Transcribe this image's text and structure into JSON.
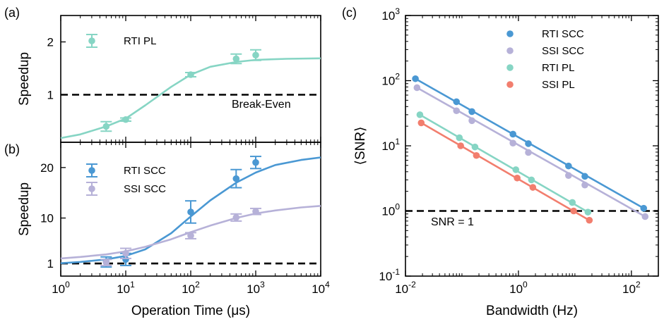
{
  "colors": {
    "rti_pl": "#86d5c4",
    "rti_scc": "#4a98d3",
    "ssi_scc": "#b6b1d8",
    "ssi_pl": "#f27e6e"
  },
  "chart_data": [
    {
      "panel_label": "(a)",
      "type": "scatter",
      "x_scale": "log",
      "xlim": [
        1,
        10000
      ],
      "ylim": [
        0.1,
        2.5
      ],
      "ylabel": "Speedup",
      "yticks": [
        1,
        2
      ],
      "reference_line": {
        "y": 1,
        "label": "Break-Even"
      },
      "legend_position": "top-left",
      "series": [
        {
          "name": "RTI PL",
          "color_key": "rti_pl",
          "x": [
            5,
            10,
            100,
            500,
            1000
          ],
          "y": [
            0.4,
            0.53,
            1.38,
            1.68,
            1.75
          ],
          "yerr": [
            0.09,
            0.03,
            0.04,
            0.09,
            0.1
          ],
          "fit": {
            "x": [
              1,
              2,
              5,
              10,
              20,
              50,
              100,
              200,
              500,
              1000,
              3000,
              10000
            ],
            "y": [
              0.18,
              0.25,
              0.4,
              0.55,
              0.8,
              1.15,
              1.38,
              1.53,
              1.62,
              1.66,
              1.68,
              1.69
            ]
          }
        }
      ]
    },
    {
      "panel_label": "(b)",
      "type": "scatter",
      "x_scale": "log",
      "xlim": [
        1,
        10000
      ],
      "ylim": [
        -1.5,
        25
      ],
      "xlabel": "Operation Time (μs)",
      "ylabel": "Speedup",
      "yticks": [
        1,
        10,
        20
      ],
      "reference_line": {
        "y": 1
      },
      "legend_position": "top-left",
      "series": [
        {
          "name": "RTI SCC",
          "color_key": "rti_scc",
          "x": [
            5,
            10,
            100,
            500,
            1000
          ],
          "y": [
            1.3,
            1.8,
            11.2,
            17.8,
            21
          ],
          "yerr": [
            1.0,
            1.2,
            2.2,
            1.8,
            1.2
          ],
          "fit": {
            "x": [
              1,
              2,
              5,
              10,
              20,
              50,
              100,
              200,
              500,
              1000,
              2000,
              5000,
              10000
            ],
            "y": [
              1.05,
              1.3,
              1.8,
              2.5,
              3.8,
              7,
              10.3,
              13.5,
              17,
              19,
              20.5,
              21.5,
              22
            ]
          }
        },
        {
          "name": "SSI SCC",
          "color_key": "ssi_scc",
          "x": [
            5,
            10,
            100,
            500,
            1000
          ],
          "y": [
            1.2,
            3.0,
            6.5,
            10.1,
            11.3
          ],
          "yerr": [
            0.6,
            1.0,
            0.6,
            0.7,
            0.6
          ],
          "fit": {
            "x": [
              1,
              2,
              5,
              10,
              20,
              50,
              100,
              200,
              500,
              1000,
              2000,
              5000,
              10000
            ],
            "y": [
              2,
              2.3,
              2.8,
              3.4,
              4.3,
              5.8,
              7.2,
              8.5,
              10,
              10.9,
              11.5,
              12.1,
              12.4
            ]
          }
        }
      ]
    },
    {
      "panel_label": "(c)",
      "type": "scatter",
      "x_scale": "log",
      "y_scale": "log",
      "xlim": [
        0.01,
        300
      ],
      "ylim": [
        0.1,
        1000
      ],
      "xlabel": "Bandwidth (Hz)",
      "ylabel": "⟨SNR⟩",
      "reference_line": {
        "y": 1,
        "label": "SNR = 1"
      },
      "legend_position": "top-right",
      "series": [
        {
          "name": "RTI SCC",
          "color_key": "rti_scc",
          "x": [
            0.015,
            0.08,
            0.15,
            0.8,
            1.5,
            7.7,
            15,
            165
          ],
          "y": [
            107,
            47.5,
            33.5,
            15.1,
            10.8,
            4.9,
            3.4,
            1.1
          ]
        },
        {
          "name": "SSI SCC",
          "color_key": "ssi_scc",
          "x": [
            0.016,
            0.08,
            0.15,
            0.8,
            1.5,
            7.7,
            15,
            175
          ],
          "y": [
            78,
            34.5,
            24.3,
            11,
            7.9,
            3.5,
            2.5,
            0.82
          ]
        },
        {
          "name": "RTI PL",
          "color_key": "rti_pl",
          "x": [
            0.018,
            0.09,
            0.17,
            0.9,
            1.7,
            9,
            17
          ],
          "y": [
            30,
            13.3,
            9.6,
            4.3,
            3.0,
            1.35,
            0.96
          ]
        },
        {
          "name": "SSI PL",
          "color_key": "ssi_pl",
          "x": [
            0.019,
            0.095,
            0.18,
            0.95,
            1.8,
            9.5,
            18
          ],
          "y": [
            22.5,
            10,
            7.1,
            3.2,
            2.3,
            1.0,
            0.72
          ]
        }
      ]
    }
  ]
}
